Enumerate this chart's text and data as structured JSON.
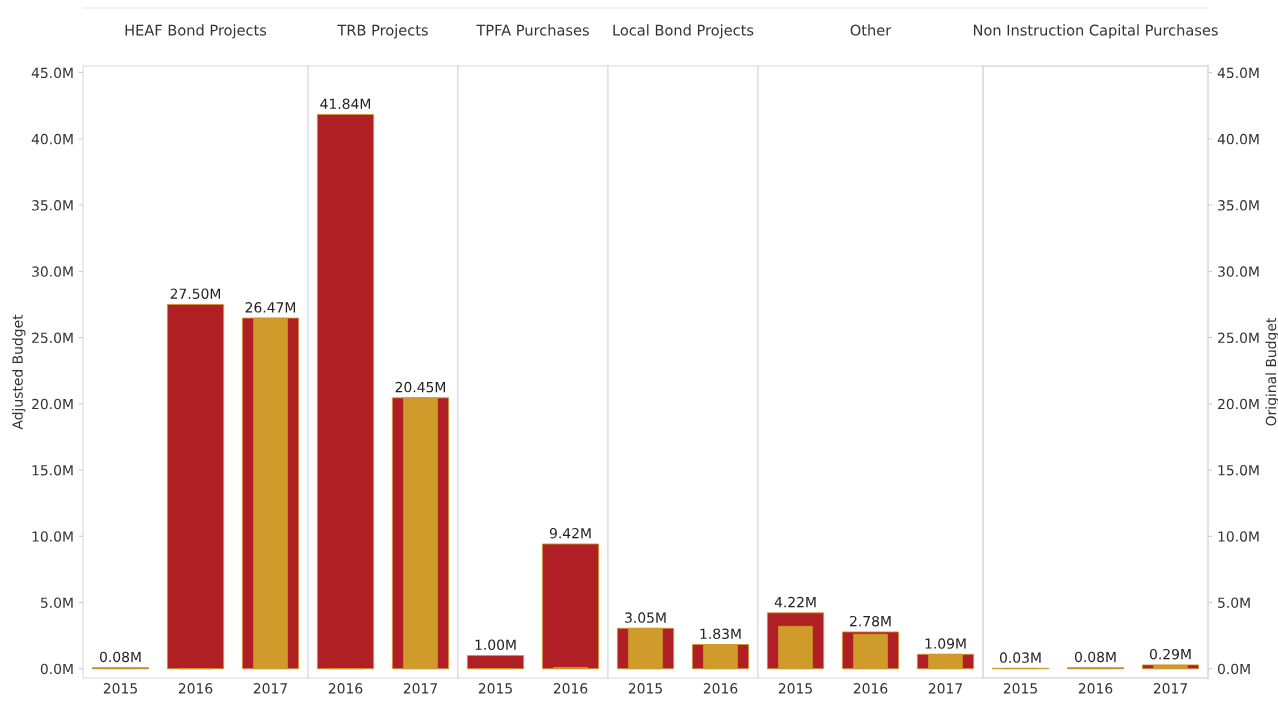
{
  "chart_data": [
    {
      "type": "bar",
      "title": "HEAF Bond Projects",
      "ylabel": "Adjusted Budget",
      "categories": [
        "2015",
        "2016",
        "2017"
      ],
      "ylim": [
        -0.7,
        45.5
      ],
      "yticks": [
        {
          "value": 0,
          "label": "0.0M"
        },
        {
          "value": 5,
          "label": "5.0M"
        },
        {
          "value": 10,
          "label": "10.0M"
        },
        {
          "value": 15,
          "label": "15.0M"
        },
        {
          "value": 20,
          "label": "20.0M"
        },
        {
          "value": 25,
          "label": "25.0M"
        },
        {
          "value": 30,
          "label": "30.0M"
        },
        {
          "value": 35,
          "label": "35.0M"
        },
        {
          "value": 40,
          "label": "40.0M"
        },
        {
          "value": 45,
          "label": "45.0M"
        }
      ],
      "series": [
        {
          "color": "#b01f24",
          "values": [
            0.08,
            27.5,
            26.47
          ],
          "value_labels": [
            "0.08M",
            "27.50M",
            "26.47M"
          ]
        },
        {
          "color": "#cf9b2b",
          "values": [
            0.08,
            0,
            26.47
          ]
        }
      ]
    },
    {
      "type": "bar",
      "title": "TRB Projects",
      "categories": [
        "2016",
        "2017"
      ],
      "ylim": [
        -0.7,
        45.5
      ],
      "series": [
        {
          "color": "#b01f24",
          "values": [
            41.84,
            20.45
          ],
          "value_labels": [
            "41.84M",
            "20.45M"
          ]
        },
        {
          "color": "#cf9b2b",
          "values": [
            0,
            20.45
          ]
        }
      ]
    },
    {
      "type": "bar",
      "title": "TPFA Purchases",
      "categories": [
        "2015",
        "2016"
      ],
      "ylim": [
        -0.7,
        45.5
      ],
      "series": [
        {
          "color": "#b01f24",
          "values": [
            1.0,
            9.42
          ],
          "value_labels": [
            "1.00M",
            "9.42M"
          ]
        },
        {
          "color": "#cf9b2b",
          "values": [
            0,
            0.1
          ]
        }
      ]
    },
    {
      "type": "bar",
      "title": "Local Bond Projects",
      "categories": [
        "2015",
        "2016"
      ],
      "ylim": [
        -0.7,
        45.5
      ],
      "series": [
        {
          "color": "#b01f24",
          "values": [
            3.05,
            1.83
          ],
          "value_labels": [
            "3.05M",
            "1.83M"
          ]
        },
        {
          "color": "#cf9b2b",
          "values": [
            3.05,
            1.83
          ]
        }
      ]
    },
    {
      "type": "bar",
      "title": "Other",
      "categories": [
        "2015",
        "2016",
        "2017"
      ],
      "ylim": [
        -0.7,
        45.5
      ],
      "series": [
        {
          "color": "#b01f24",
          "values": [
            4.22,
            2.78,
            1.09
          ],
          "value_labels": [
            "4.22M",
            "2.78M",
            "1.09M"
          ]
        },
        {
          "color": "#cf9b2b",
          "values": [
            3.2,
            2.6,
            1.09
          ]
        }
      ]
    },
    {
      "type": "bar",
      "title": "Non Instruction Capital Purchases",
      "y2label": "Original Budget",
      "categories": [
        "2015",
        "2016",
        "2017"
      ],
      "ylim": [
        -0.7,
        45.5
      ],
      "y2lim": [
        -0.7,
        45.5
      ],
      "y2ticks": [
        {
          "value": 0,
          "label": "0.0M"
        },
        {
          "value": 5,
          "label": "5.0M"
        },
        {
          "value": 10,
          "label": "10.0M"
        },
        {
          "value": 15,
          "label": "15.0M"
        },
        {
          "value": 20,
          "label": "20.0M"
        },
        {
          "value": 25,
          "label": "25.0M"
        },
        {
          "value": 30,
          "label": "30.0M"
        },
        {
          "value": 35,
          "label": "35.0M"
        },
        {
          "value": 40,
          "label": "40.0M"
        },
        {
          "value": 45,
          "label": "45.0M"
        }
      ],
      "series": [
        {
          "color": "#b01f24",
          "values": [
            0.03,
            0.08,
            0.29
          ],
          "value_labels": [
            "0.03M",
            "0.08M",
            "0.29M"
          ]
        },
        {
          "color": "#cf9b2b",
          "values": [
            0.03,
            0.08,
            0.25
          ]
        }
      ]
    }
  ]
}
